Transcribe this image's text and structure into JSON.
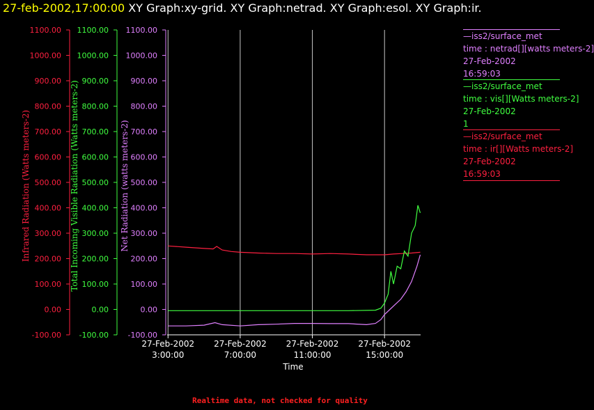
{
  "header": {
    "timestamp": "27-feb-2002,17:00:00",
    "graphs": "XY Graph:xy-grid.  XY Graph:netrad.  XY Graph:esol.  XY Graph:ir."
  },
  "legend": [
    {
      "source": "—iss2/surface_met",
      "var": "time : netrad[][watts meters-2]",
      "date": "27-Feb-2002",
      "value": "16:59:03",
      "color": "#e080ff"
    },
    {
      "source": "—iss2/surface_met",
      "var": "time : vis[][Watts meters-2]",
      "date": "27-Feb-2002",
      "value": "1",
      "color": "#40ff40"
    },
    {
      "source": "—iss2/surface_met",
      "var": "time : ir[][Watts meters-2]",
      "date": "27-Feb-2002",
      "value": "16:59:03",
      "color": "#ff2040"
    }
  ],
  "footer": "Realtime data, not checked for quality",
  "chart_data": {
    "type": "line",
    "xlabel": "Time",
    "x_ticks": [
      {
        "date": "27-Feb-2002",
        "time": "3:00:00",
        "hour": 3
      },
      {
        "date": "27-Feb-2002",
        "time": "7:00:00",
        "hour": 7
      },
      {
        "date": "27-Feb-2002",
        "time": "11:00:00",
        "hour": 11
      },
      {
        "date": "27-Feb-2002",
        "time": "15:00:00",
        "hour": 15
      }
    ],
    "xlim": [
      2.95,
      17.0
    ],
    "ylim": [
      -100,
      1100
    ],
    "y_ticks": [
      -100,
      0,
      100,
      200,
      300,
      400,
      500,
      600,
      700,
      800,
      900,
      1000,
      1100
    ],
    "y_tick_labels": [
      "-100.00",
      "0.00",
      "100.00",
      "200.00",
      "300.00",
      "400.00",
      "500.00",
      "600.00",
      "700.00",
      "800.00",
      "900.00",
      "1000.00",
      "1100.00"
    ],
    "grid": "vertical",
    "axes": [
      {
        "label": "Infrared Radiation (Watts meters-2)",
        "color": "#ff2040"
      },
      {
        "label": "Total Incoming Visible Radiation (Watts meters-2)",
        "color": "#40ff40"
      },
      {
        "label": "Net Radiation (watts meters-2)",
        "color": "#e080ff"
      }
    ],
    "series": [
      {
        "color": "#ff2040",
        "x": [
          3.0,
          4.0,
          5.0,
          5.5,
          5.7,
          6.0,
          6.5,
          7.0,
          8.0,
          9.0,
          10.0,
          11.0,
          12.0,
          13.0,
          14.0,
          15.0,
          15.5,
          16.0,
          16.5,
          16.98
        ],
        "y": [
          250,
          245,
          240,
          238,
          248,
          234,
          228,
          225,
          222,
          220,
          220,
          218,
          220,
          218,
          215,
          215,
          218,
          220,
          222,
          225
        ]
      },
      {
        "color": "#40ff40",
        "x": [
          3.0,
          5.0,
          7.0,
          9.0,
          11.0,
          13.0,
          14.5,
          14.8,
          15.0,
          15.2,
          15.35,
          15.5,
          15.7,
          15.9,
          16.1,
          16.3,
          16.5,
          16.7,
          16.85,
          16.98
        ],
        "y": [
          -5,
          -5,
          -5,
          -5,
          -5,
          -5,
          -3,
          5,
          25,
          60,
          150,
          100,
          170,
          160,
          230,
          210,
          300,
          330,
          410,
          380
        ]
      },
      {
        "color": "#e080ff",
        "x": [
          3.0,
          4.0,
          5.0,
          5.6,
          6.0,
          7.0,
          8.0,
          9.0,
          10.0,
          11.0,
          12.0,
          13.0,
          14.0,
          14.5,
          14.8,
          15.0,
          15.3,
          15.6,
          15.9,
          16.2,
          16.5,
          16.8,
          16.98
        ],
        "y": [
          -65,
          -65,
          -62,
          -52,
          -60,
          -65,
          -60,
          -58,
          -55,
          -55,
          -56,
          -56,
          -60,
          -55,
          -40,
          -20,
          0,
          20,
          40,
          70,
          110,
          170,
          215
        ]
      }
    ]
  }
}
